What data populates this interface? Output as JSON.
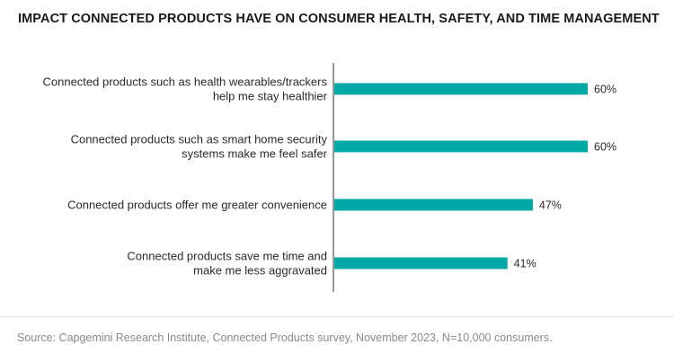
{
  "chart_data": {
    "type": "bar",
    "orientation": "horizontal",
    "title": "IMPACT CONNECTED PRODUCTS HAVE ON CONSUMER HEALTH, SAFETY, AND TIME MANAGEMENT",
    "categories": [
      [
        "Connected products such as health wearables/trackers",
        "help me stay healthier"
      ],
      [
        "Connected products such as smart home security",
        "systems make me feel safer"
      ],
      [
        "Connected products offer me greater convenience"
      ],
      [
        "Connected products save me time and",
        "make me less aggravated"
      ]
    ],
    "values": [
      60,
      60,
      47,
      41
    ],
    "value_labels": [
      "60%",
      "60%",
      "47%",
      "41%"
    ],
    "unit": "%",
    "xlim": [
      0,
      100
    ],
    "bar_color": "#00a9a5",
    "grid": false,
    "legend": "none"
  },
  "footer": {
    "source": "Source: Capgemini Research Institute, Connected Products survey, November 2023, N=10,000 consumers."
  }
}
